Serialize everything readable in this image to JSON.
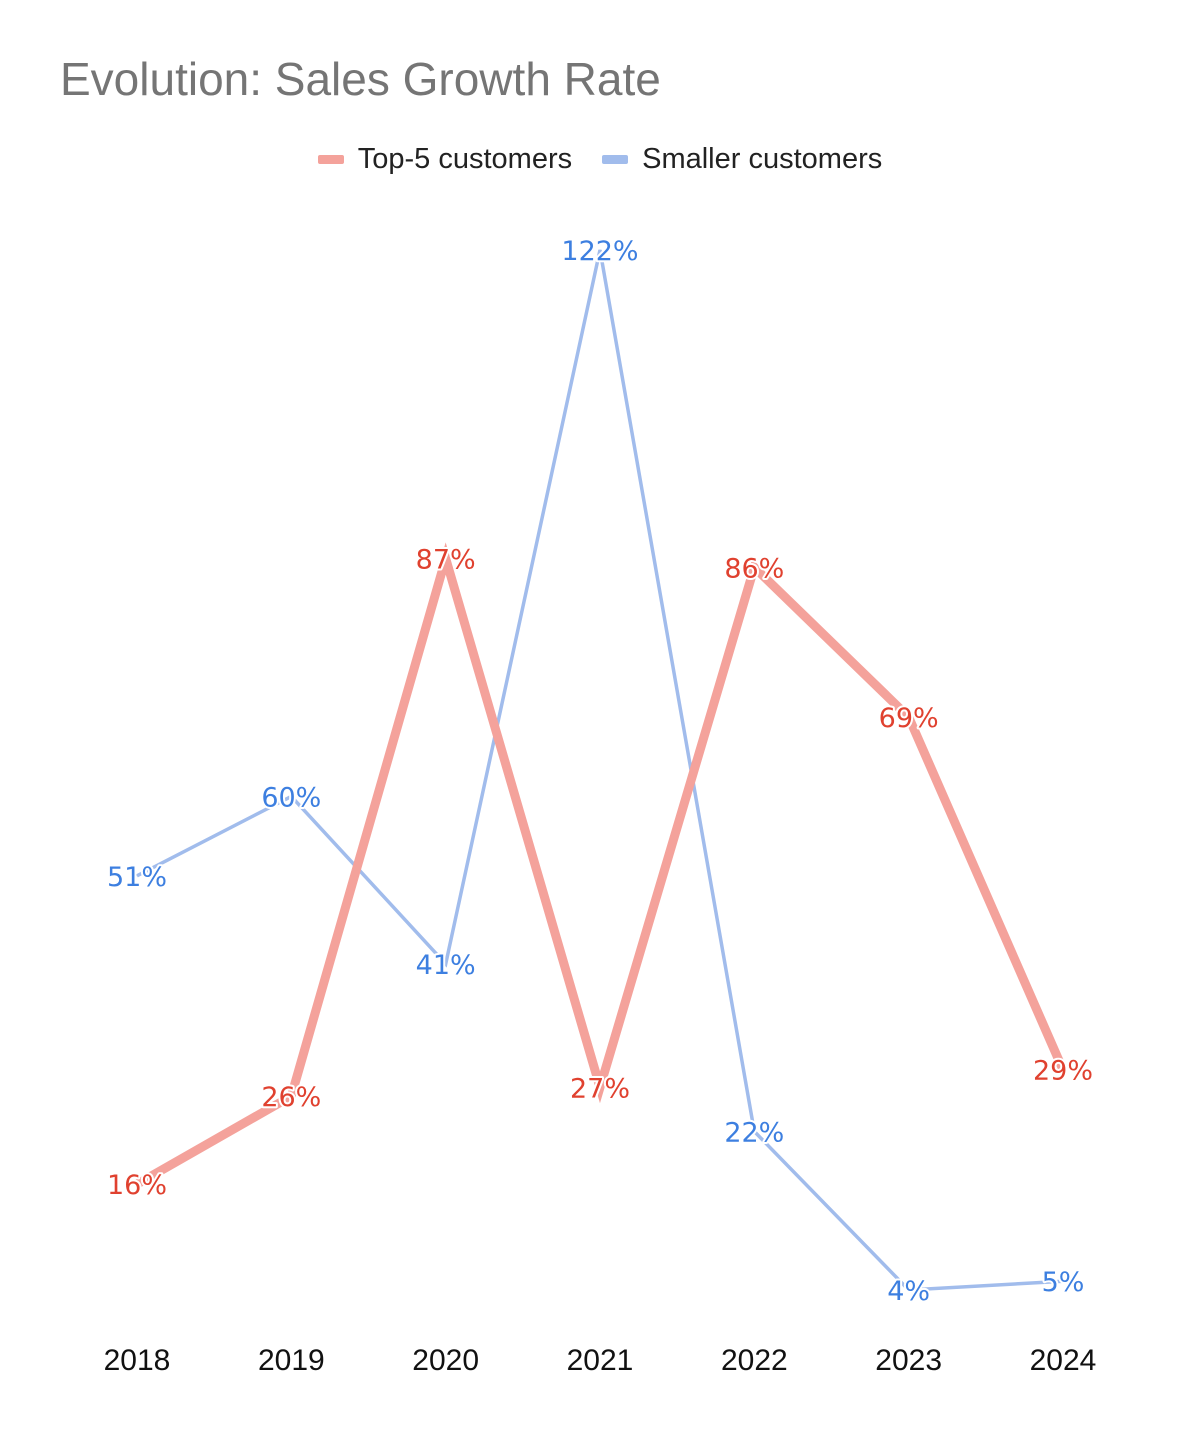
{
  "chart_data": {
    "type": "line",
    "title": "Evolution: Sales Growth Rate",
    "xlabel": "",
    "ylabel": "",
    "x": [
      "2018",
      "2019",
      "2020",
      "2021",
      "2022",
      "2023",
      "2024"
    ],
    "series": [
      {
        "name": "Top-5 customers",
        "values": [
          16,
          26,
          87,
          27,
          86,
          69,
          29
        ],
        "labels": [
          "16%",
          "26%",
          "87%",
          "27%",
          "86%",
          "69%",
          "29%"
        ],
        "color": "#f4a29b",
        "label_color": "#e0412f"
      },
      {
        "name": "Smaller customers",
        "values": [
          51,
          60,
          41,
          122,
          22,
          4,
          5
        ],
        "labels": [
          "51%",
          "60%",
          "41%",
          "122%",
          "22%",
          "4%",
          "5%"
        ],
        "color": "#a1bcec",
        "label_color": "#3d7fe0"
      }
    ],
    "ylim": [
      4,
      122
    ],
    "grid": false,
    "legend": "top-center",
    "y_axis_visible": false
  }
}
